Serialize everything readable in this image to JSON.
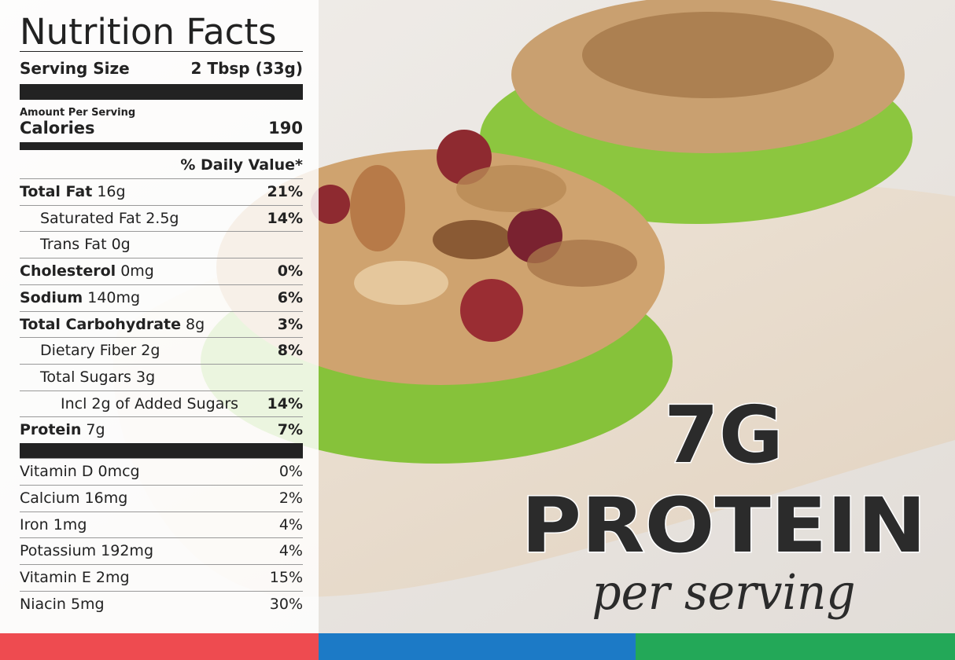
{
  "label": {
    "title": "Nutrition Facts",
    "serving_size_label": "Serving Size",
    "serving_size": "2 Tbsp (33g)",
    "amount_per_serving": "Amount Per Serving",
    "calories_label": "Calories",
    "calories": "190",
    "daily_value_header": "% Daily Value*",
    "nutrients": [
      {
        "name": "Total Fat",
        "amount": "16g",
        "dv": "21%"
      },
      {
        "name": "Saturated Fat",
        "amount": "2.5g",
        "dv": "14%"
      },
      {
        "name": "Trans Fat",
        "amount": "0g"
      },
      {
        "name": "Cholesterol",
        "amount": "0mg",
        "dv": "0%"
      },
      {
        "name": "Sodium",
        "amount": "140mg",
        "dv": "6%"
      },
      {
        "name": "Total Carbohydrate",
        "amount": "8g",
        "dv": "3%"
      },
      {
        "name": "Dietary Fiber",
        "amount": "2g",
        "dv": "8%"
      },
      {
        "name": "Total Sugars",
        "amount": "3g"
      },
      {
        "name": "Incl 2g of Added Sugars",
        "dv": "14%"
      },
      {
        "name": "Protein",
        "amount": "7g",
        "dv": "7%"
      }
    ],
    "vitamins": [
      {
        "name": "Vitamin D",
        "amount": "0mcg",
        "dv": "0%"
      },
      {
        "name": "Calcium",
        "amount": "16mg",
        "dv": "2%"
      },
      {
        "name": "Iron",
        "amount": "1mg",
        "dv": "4%"
      },
      {
        "name": "Potassium",
        "amount": "192mg",
        "dv": "4%"
      },
      {
        "name": "Vitamin E",
        "amount": "2mg",
        "dv": "15%"
      },
      {
        "name": "Niacin",
        "amount": "5mg",
        "dv": "30%"
      }
    ]
  },
  "promo": {
    "headline": "7G",
    "word": "PROTEIN",
    "tagline": "per serving"
  }
}
